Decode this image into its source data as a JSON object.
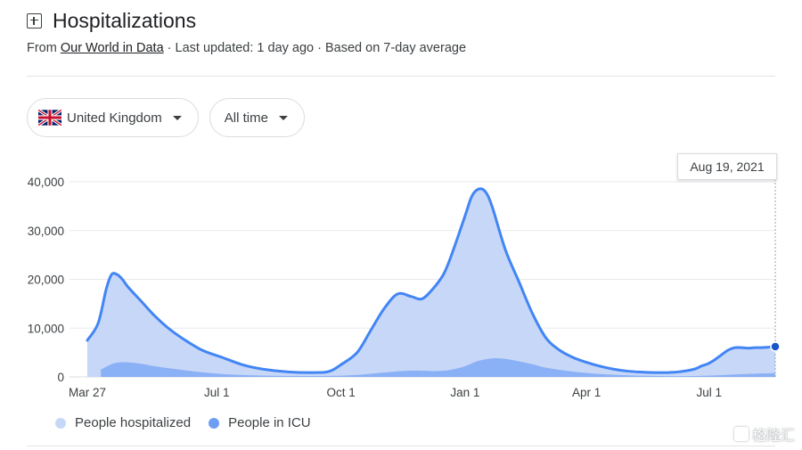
{
  "header": {
    "title": "Hospitalizations",
    "from_prefix": "From ",
    "source": "Our World in Data",
    "meta": " · Last updated: 1 day ago · Based on 7-day average"
  },
  "filters": {
    "country": "United Kingdom",
    "range": "All time"
  },
  "tooltip": {
    "date": "Aug 19, 2021"
  },
  "watermark": "格隆汇",
  "colors": {
    "hospital_fill": "#c7d7f7",
    "hospital_line": "#4285f4",
    "icu_fill": "#8ab0f5",
    "grid": "#e8eaed",
    "axis_text": "#3c4043"
  },
  "chart_data": {
    "type": "area",
    "x_unit": "days since 2020-03-27",
    "ylim": [
      0,
      40000
    ],
    "yticks": [
      0,
      10000,
      20000,
      30000,
      40000
    ],
    "ytick_labels": [
      "0",
      "10,000",
      "20,000",
      "30,000",
      "40,000"
    ],
    "xticks": [
      0,
      96,
      188,
      280,
      370,
      461
    ],
    "xtick_labels": [
      "Mar 27",
      "Jul 1",
      "Oct 1",
      "Jan 1",
      "Apr 1",
      "Jul 1"
    ],
    "grid": true,
    "legend": "bottom-left",
    "series": [
      {
        "name": "People hospitalized",
        "x": [
          0,
          8,
          14,
          18,
          22,
          26,
          30,
          40,
          50,
          60,
          70,
          85,
          100,
          115,
          130,
          150,
          170,
          180,
          188,
          200,
          210,
          220,
          230,
          240,
          248,
          256,
          264,
          270,
          280,
          285,
          290,
          295,
          300,
          310,
          320,
          330,
          340,
          350,
          360,
          370,
          380,
          390,
          400,
          410,
          420,
          430,
          440,
          450,
          455,
          460,
          465,
          470,
          475,
          480,
          485,
          490,
          495,
          500,
          505,
          510
        ],
        "y": [
          7500,
          11000,
          18000,
          21000,
          21000,
          20000,
          18500,
          15500,
          12500,
          10000,
          8000,
          5500,
          4000,
          2500,
          1600,
          1000,
          900,
          1200,
          2500,
          5000,
          9500,
          14000,
          17000,
          16500,
          16000,
          18000,
          21000,
          25000,
          33000,
          37000,
          38500,
          38000,
          35000,
          26000,
          19500,
          13000,
          8000,
          5500,
          4000,
          3000,
          2200,
          1600,
          1200,
          1000,
          900,
          900,
          1100,
          1600,
          2200,
          2700,
          3500,
          4500,
          5500,
          6000,
          6000,
          5900,
          6000,
          6000,
          6100,
          6200
        ]
      },
      {
        "name": "People in ICU",
        "x": [
          10,
          20,
          30,
          40,
          50,
          60,
          80,
          100,
          120,
          150,
          180,
          200,
          220,
          240,
          260,
          270,
          280,
          290,
          300,
          310,
          320,
          330,
          340,
          360,
          380,
          400,
          420,
          440,
          460,
          480,
          500,
          510
        ],
        "y": [
          1500,
          2800,
          3000,
          2700,
          2200,
          1800,
          1100,
          600,
          350,
          200,
          200,
          400,
          900,
          1300,
          1200,
          1500,
          2200,
          3300,
          3800,
          3700,
          3200,
          2600,
          1900,
          1100,
          600,
          350,
          200,
          150,
          250,
          500,
          700,
          750
        ]
      }
    ],
    "highlight": {
      "x": 510,
      "y": 6200,
      "label": "Aug 19, 2021"
    }
  }
}
